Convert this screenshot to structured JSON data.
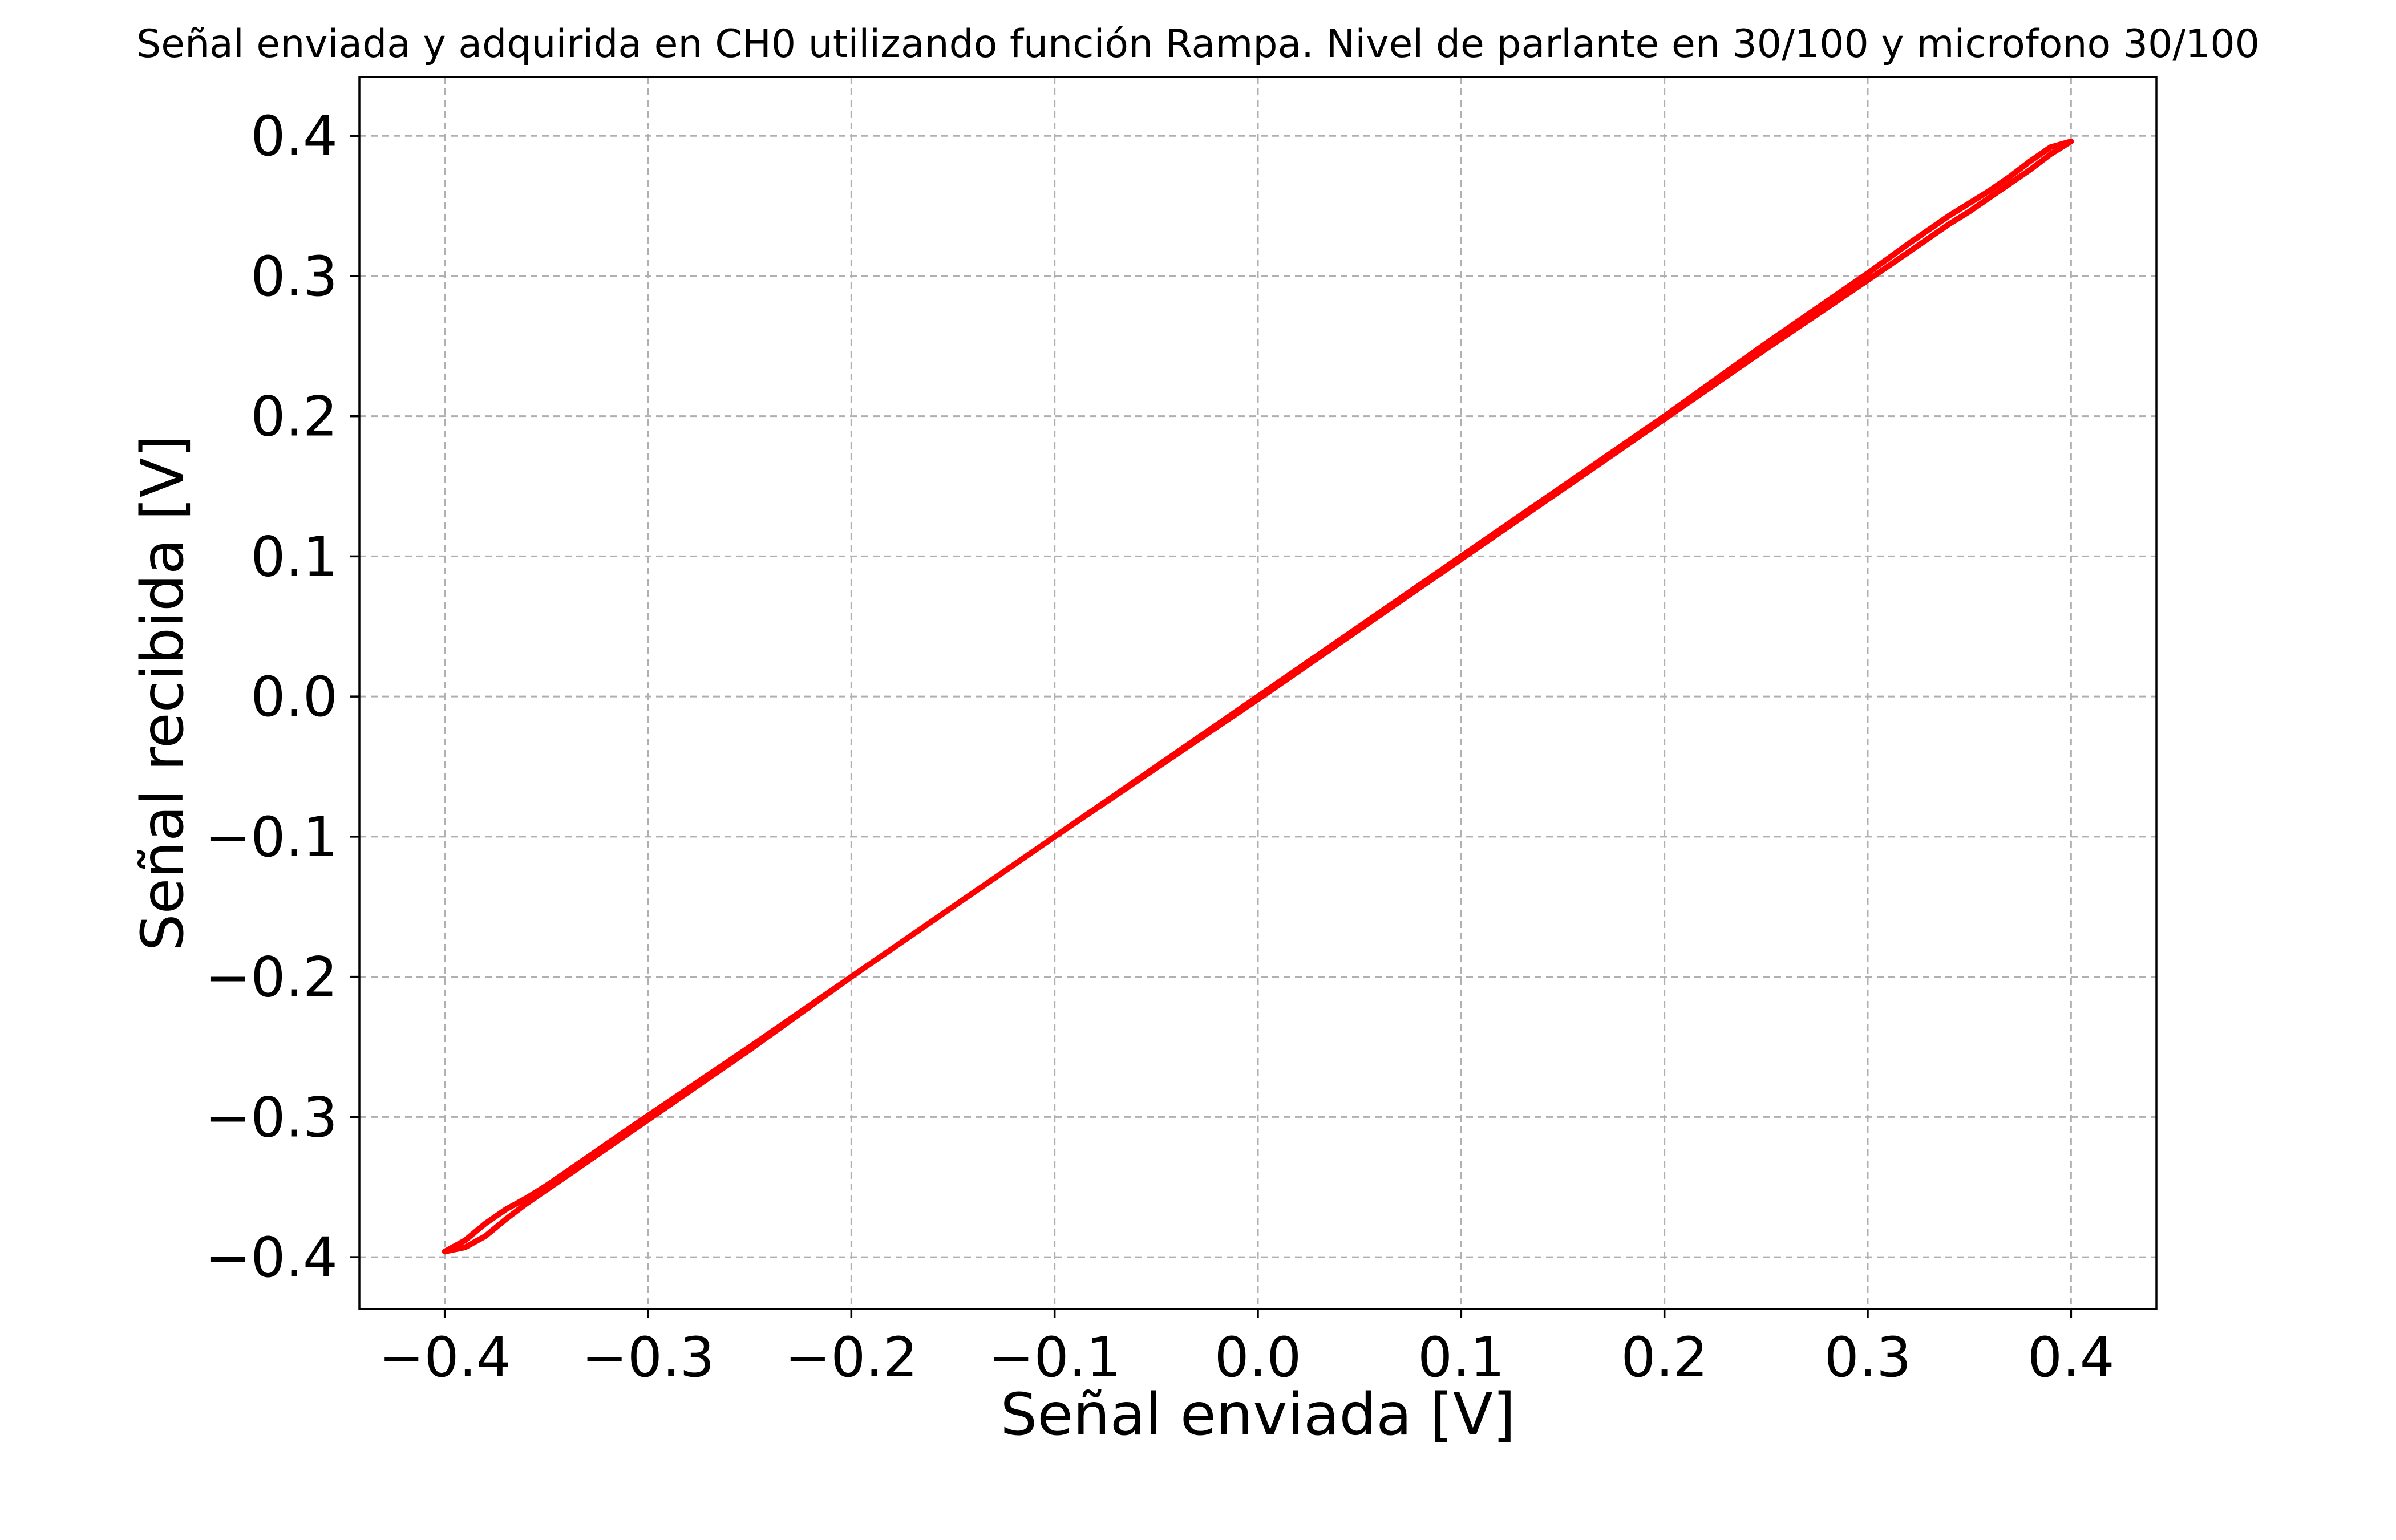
{
  "chart_data": {
    "type": "line",
    "title": "Señal enviada y adquirida en CH0 utilizando función Rampa. Nivel de parlante en 30/100 y microfono 30/100",
    "xlabel": "Señal enviada [V]",
    "ylabel": "Señal recibida [V]",
    "xlim": [
      -0.442,
      0.442
    ],
    "ylim": [
      -0.437,
      0.442
    ],
    "xticks": [
      -0.4,
      -0.3,
      -0.2,
      -0.1,
      0.0,
      0.1,
      0.2,
      0.3,
      0.4
    ],
    "yticks": [
      -0.4,
      -0.3,
      -0.2,
      -0.1,
      0.0,
      0.1,
      0.2,
      0.3,
      0.4
    ],
    "xtick_labels": [
      "−0.4",
      "−0.3",
      "−0.2",
      "−0.1",
      "0.0",
      "0.1",
      "0.2",
      "0.3",
      "0.4"
    ],
    "ytick_labels": [
      "−0.4",
      "−0.3",
      "−0.2",
      "−0.1",
      "0.0",
      "0.1",
      "0.2",
      "0.3",
      "0.4"
    ],
    "grid": true,
    "series": [
      {
        "color": "#ff0000",
        "x": [
          -0.4,
          -0.39,
          -0.38,
          -0.37,
          -0.36,
          -0.35,
          -0.34,
          -0.32,
          -0.3,
          -0.25,
          -0.2,
          -0.1,
          0.0,
          0.1,
          0.2,
          0.25,
          0.3,
          0.32,
          0.34,
          0.35,
          0.36,
          0.37,
          0.38,
          0.39,
          0.4,
          0.4,
          0.39,
          0.38,
          0.37,
          0.36,
          0.35,
          0.34,
          0.32,
          0.3,
          0.25,
          0.2,
          0.1,
          0.0,
          -0.1,
          -0.2,
          -0.25,
          -0.3,
          -0.32,
          -0.34,
          -0.35,
          -0.36,
          -0.37,
          -0.38,
          -0.39,
          -0.4
        ],
        "y": [
          -0.396,
          -0.388,
          -0.376,
          -0.366,
          -0.358,
          -0.349,
          -0.339,
          -0.319,
          -0.299,
          -0.25,
          -0.2,
          -0.1,
          0.0,
          0.1,
          0.2,
          0.252,
          0.302,
          0.323,
          0.343,
          0.352,
          0.361,
          0.371,
          0.382,
          0.392,
          0.396,
          0.396,
          0.387,
          0.376,
          0.366,
          0.356,
          0.346,
          0.337,
          0.317,
          0.297,
          0.248,
          0.198,
          0.098,
          -0.002,
          -0.1,
          -0.2,
          -0.252,
          -0.302,
          -0.322,
          -0.342,
          -0.352,
          -0.362,
          -0.373,
          -0.385,
          -0.393,
          -0.396
        ]
      }
    ]
  }
}
